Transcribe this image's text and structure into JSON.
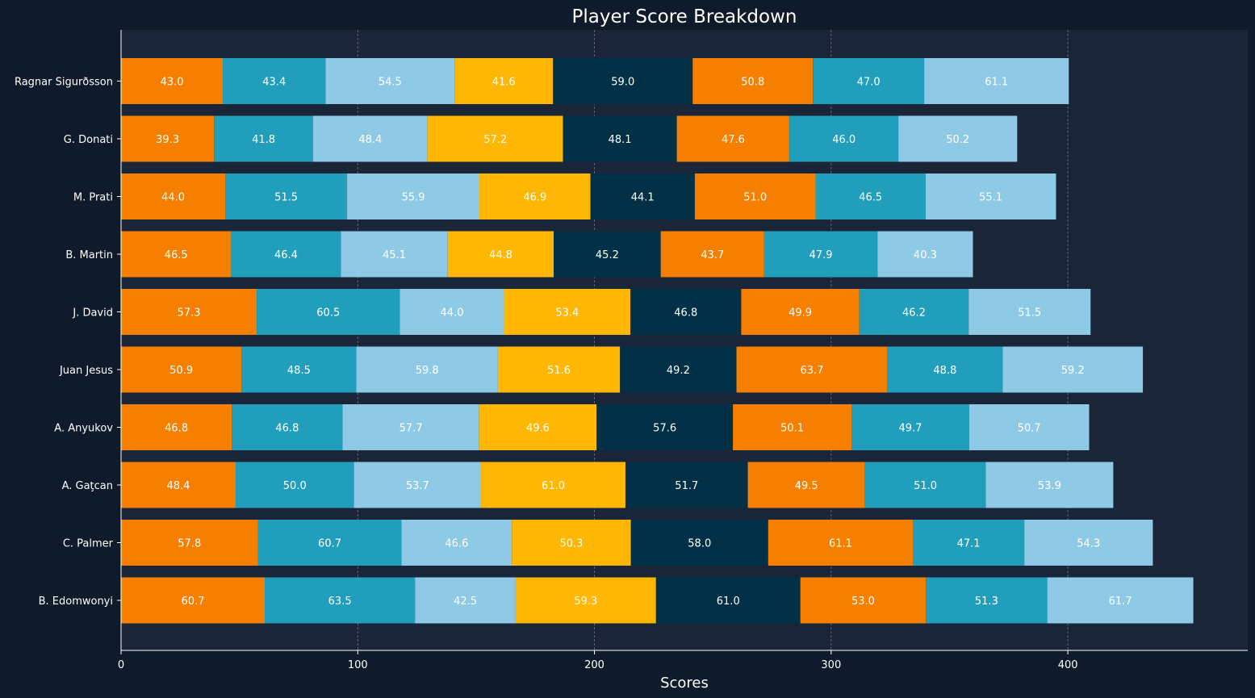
{
  "chart_data": {
    "type": "bar",
    "orientation": "horizontal",
    "stacked": true,
    "title": "Player Score Breakdown",
    "xlabel": "Scores",
    "ylabel": "",
    "xlim": [
      0,
      476
    ],
    "xticks": [
      0,
      100,
      200,
      300,
      400
    ],
    "grid": "vertical dashed",
    "legend": "none",
    "categories": [
      "Ragnar Sigurðsson",
      "G. Donati",
      "M. Prati",
      "B. Martin",
      "J. David",
      "Juan Jesus",
      "A. Anyukov",
      "A. Gaţcan",
      "C. Palmer",
      "B. Edomwonyi"
    ],
    "segment_colors": [
      "#f77f00",
      "#219ebc",
      "#8ecae6",
      "#ffb703",
      "#023047",
      "#f77f00",
      "#219ebc",
      "#8ecae6"
    ],
    "rows": [
      [
        43.0,
        43.4,
        54.5,
        41.6,
        59.0,
        50.8,
        47.0,
        61.1
      ],
      [
        39.3,
        41.8,
        48.4,
        57.2,
        48.1,
        47.6,
        46.0,
        50.2
      ],
      [
        44.0,
        51.5,
        55.9,
        46.9,
        44.1,
        51.0,
        46.5,
        55.1
      ],
      [
        46.5,
        46.4,
        45.1,
        44.8,
        45.2,
        43.7,
        47.9,
        40.3
      ],
      [
        57.3,
        60.5,
        44.0,
        53.4,
        46.8,
        49.9,
        46.2,
        51.5
      ],
      [
        50.9,
        48.5,
        59.8,
        51.6,
        49.2,
        63.7,
        48.8,
        59.2
      ],
      [
        46.8,
        46.8,
        57.7,
        49.6,
        57.6,
        50.1,
        49.7,
        50.7
      ],
      [
        48.4,
        50.0,
        53.7,
        61.0,
        51.7,
        49.5,
        51.0,
        53.9
      ],
      [
        57.8,
        60.7,
        46.6,
        50.3,
        58.0,
        61.1,
        47.1,
        54.3
      ],
      [
        60.7,
        63.5,
        42.5,
        59.3,
        61.0,
        53.0,
        51.3,
        61.7
      ]
    ]
  },
  "style": {
    "figure_background": "#0f1a2a",
    "plot_background": "#1b2538",
    "text_color": "#ffffff",
    "axis_color": "#ffffff",
    "grid_color": "#8a93a6"
  }
}
